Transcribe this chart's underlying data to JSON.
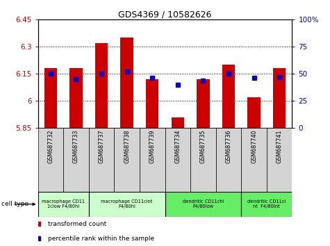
{
  "title": "GDS4369 / 10582626",
  "samples": [
    "GSM687732",
    "GSM687733",
    "GSM687737",
    "GSM687738",
    "GSM687739",
    "GSM687734",
    "GSM687735",
    "GSM687736",
    "GSM687740",
    "GSM687741"
  ],
  "bar_values": [
    6.18,
    6.18,
    6.32,
    6.35,
    6.12,
    5.91,
    6.12,
    6.2,
    6.02,
    6.18
  ],
  "percentile_values": [
    50,
    45,
    50,
    52,
    46,
    40,
    44,
    50,
    46,
    47
  ],
  "ylim_left": [
    5.85,
    6.45
  ],
  "ylim_right": [
    0,
    100
  ],
  "yticks_left": [
    5.85,
    6.0,
    6.15,
    6.3,
    6.45
  ],
  "ytick_labels_left": [
    "5.85",
    "6",
    "6.15",
    "6.3",
    "6.45"
  ],
  "yticks_right": [
    0,
    25,
    50,
    75,
    100
  ],
  "ytick_labels_right": [
    "0",
    "25",
    "50",
    "75",
    "100%"
  ],
  "bar_color": "#cc0000",
  "dot_color": "#0000cc",
  "bg_color": "#ffffff",
  "cell_type_groups": [
    {
      "label": "macrophage CD11\n1clow F4/80hi",
      "start": 0,
      "end": 2,
      "color": "#ccffcc"
    },
    {
      "label": "macrophage CD11cint\nF4/80hi",
      "start": 2,
      "end": 5,
      "color": "#ccffcc"
    },
    {
      "label": "dendritic CD11chi\nF4/80low",
      "start": 5,
      "end": 8,
      "color": "#66ee66"
    },
    {
      "label": "dendritic CD11ci\nnt  F4/80int",
      "start": 8,
      "end": 10,
      "color": "#66ee66"
    }
  ],
  "legend_label_count": "transformed count",
  "legend_label_pct": "percentile rank within the sample",
  "cell_type_label": "cell type"
}
